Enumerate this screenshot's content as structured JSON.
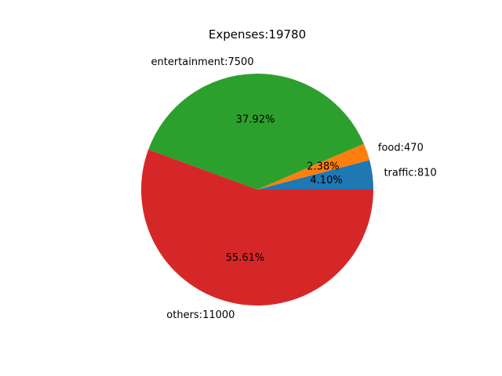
{
  "chart_data": {
    "type": "pie",
    "title": "Expenses:19780",
    "slices": [
      {
        "label": "traffic:810",
        "value": 810,
        "percent_label": "4.10%",
        "color": "#1f77b4"
      },
      {
        "label": "food:470",
        "value": 470,
        "percent_label": "2.38%",
        "color": "#ff7f0e"
      },
      {
        "label": "entertainment:7500",
        "value": 7500,
        "percent_label": "37.92%",
        "color": "#2ca02c"
      },
      {
        "label": "others:11000",
        "value": 11000,
        "percent_label": "55.61%",
        "color": "#d62728"
      }
    ],
    "start_angle_deg": 0,
    "direction": "counterclockwise",
    "legend": "none"
  }
}
